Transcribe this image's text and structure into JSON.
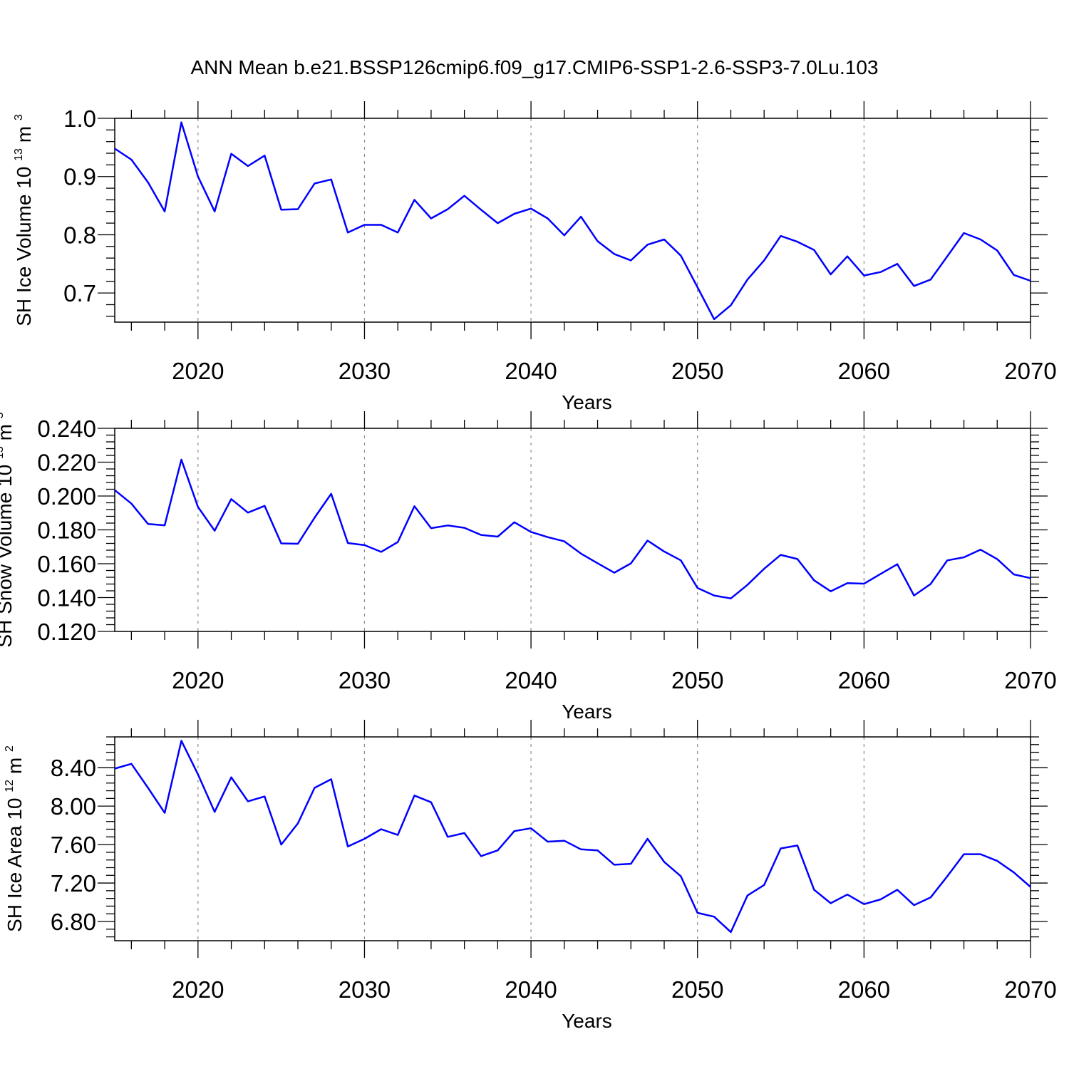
{
  "title": "ANN Mean b.e21.BSSP126cmip6.f09_g17.CMIP6-SSP1-2.6-SSP3-7.0Lu.103",
  "colors": {
    "line": "#0000ff",
    "axis": "#000000",
    "grid": "#8a8a8a"
  },
  "chart_data": [
    {
      "type": "line",
      "ylabel": "SH Ice Volume",
      "yunit_base": "10",
      "yunit_exp": "13",
      "yunit_suffix": "m",
      "yunit_suffix_exp": "3",
      "xlabel": "Years",
      "xlim": [
        2015,
        2070
      ],
      "ylim": [
        0.65,
        1.0
      ],
      "yticks": [
        0.7,
        0.8,
        0.9,
        1.0
      ],
      "ytick_labels": [
        "0.7",
        "0.8",
        "0.9",
        "1.0"
      ],
      "yminor_step": 0.02,
      "xticks": [
        2020,
        2030,
        2040,
        2050,
        2060,
        2070
      ],
      "xtick_labels": [
        "2020",
        "2030",
        "2040",
        "2050",
        "2060",
        "2070"
      ],
      "grid": "vertical dashed at major x ticks",
      "x": [
        2015,
        2016,
        2017,
        2018,
        2019,
        2020,
        2021,
        2022,
        2023,
        2024,
        2025,
        2026,
        2027,
        2028,
        2029,
        2030,
        2031,
        2032,
        2033,
        2034,
        2035,
        2036,
        2037,
        2038,
        2039,
        2040,
        2041,
        2042,
        2043,
        2044,
        2045,
        2046,
        2047,
        2048,
        2049,
        2050,
        2051,
        2052,
        2053,
        2054,
        2055,
        2056,
        2057,
        2058,
        2059,
        2060,
        2061,
        2062,
        2063,
        2064,
        2065,
        2066,
        2067,
        2068,
        2069,
        2070
      ],
      "series": [
        {
          "values": [
            0.948,
            0.929,
            0.89,
            0.84,
            0.993,
            0.9,
            0.84,
            0.939,
            0.918,
            0.936,
            0.843,
            0.844,
            0.888,
            0.895,
            0.804,
            0.817,
            0.817,
            0.804,
            0.86,
            0.828,
            0.844,
            0.867,
            0.843,
            0.82,
            0.836,
            0.845,
            0.828,
            0.799,
            0.831,
            0.789,
            0.767,
            0.756,
            0.783,
            0.792,
            0.764,
            0.71,
            0.655,
            0.679,
            0.723,
            0.756,
            0.798,
            0.788,
            0.774,
            0.732,
            0.763,
            0.73,
            0.736,
            0.75,
            0.712,
            0.723,
            0.763,
            0.803,
            0.792,
            0.773,
            0.731,
            0.721
          ]
        }
      ]
    },
    {
      "type": "line",
      "ylabel": "SH Snow Volume",
      "yunit_base": "10",
      "yunit_exp": "13",
      "yunit_suffix": "m",
      "yunit_suffix_exp": "3",
      "xlabel": "Years",
      "xlim": [
        2015,
        2070
      ],
      "ylim": [
        0.12,
        0.24
      ],
      "yticks": [
        0.12,
        0.14,
        0.16,
        0.18,
        0.2,
        0.22,
        0.24
      ],
      "ytick_labels": [
        "0.120",
        "0.140",
        "0.160",
        "0.180",
        "0.200",
        "0.220",
        "0.240"
      ],
      "yminor_step": 0.004,
      "xticks": [
        2020,
        2030,
        2040,
        2050,
        2060,
        2070
      ],
      "xtick_labels": [
        "2020",
        "2030",
        "2040",
        "2050",
        "2060",
        "2070"
      ],
      "grid": "vertical dashed at major x ticks",
      "x": [
        2015,
        2016,
        2017,
        2018,
        2019,
        2020,
        2021,
        2022,
        2023,
        2024,
        2025,
        2026,
        2027,
        2028,
        2029,
        2030,
        2031,
        2032,
        2033,
        2034,
        2035,
        2036,
        2037,
        2038,
        2039,
        2040,
        2041,
        2042,
        2043,
        2044,
        2045,
        2046,
        2047,
        2048,
        2049,
        2050,
        2051,
        2052,
        2053,
        2054,
        2055,
        2056,
        2057,
        2058,
        2059,
        2060,
        2061,
        2062,
        2063,
        2064,
        2065,
        2066,
        2067,
        2068,
        2069,
        2070
      ],
      "series": [
        {
          "values": [
            0.2035,
            0.1955,
            0.1835,
            0.1827,
            0.2215,
            0.1935,
            0.1795,
            0.1982,
            0.1902,
            0.1942,
            0.172,
            0.1718,
            0.1872,
            0.2013,
            0.1722,
            0.171,
            0.167,
            0.1728,
            0.194,
            0.181,
            0.1826,
            0.1812,
            0.177,
            0.176,
            0.1845,
            0.1788,
            0.1757,
            0.1732,
            0.166,
            0.1603,
            0.1547,
            0.1602,
            0.1737,
            0.1672,
            0.162,
            0.1457,
            0.1412,
            0.1395,
            0.1475,
            0.157,
            0.1652,
            0.1628,
            0.1502,
            0.1437,
            0.1485,
            0.1482,
            0.154,
            0.1597,
            0.1412,
            0.148,
            0.162,
            0.1638,
            0.1683,
            0.1627,
            0.1537,
            0.1515
          ]
        }
      ]
    },
    {
      "type": "line",
      "ylabel": "SH Ice Area",
      "yunit_base": "10",
      "yunit_exp": "12",
      "yunit_suffix": "m",
      "yunit_suffix_exp": "2",
      "xlabel": "Years",
      "xlim": [
        2015,
        2070
      ],
      "ylim": [
        6.6,
        8.72
      ],
      "yticks": [
        6.8,
        7.2,
        7.6,
        8.0,
        8.4
      ],
      "ytick_labels": [
        "6.80",
        "7.20",
        "7.60",
        "8.00",
        "8.40"
      ],
      "yminor_step": 0.08,
      "xticks": [
        2020,
        2030,
        2040,
        2050,
        2060,
        2070
      ],
      "xtick_labels": [
        "2020",
        "2030",
        "2040",
        "2050",
        "2060",
        "2070"
      ],
      "grid": "vertical dashed at major x ticks",
      "x": [
        2015,
        2016,
        2017,
        2018,
        2019,
        2020,
        2021,
        2022,
        2023,
        2024,
        2025,
        2026,
        2027,
        2028,
        2029,
        2030,
        2031,
        2032,
        2033,
        2034,
        2035,
        2036,
        2037,
        2038,
        2039,
        2040,
        2041,
        2042,
        2043,
        2044,
        2045,
        2046,
        2047,
        2048,
        2049,
        2050,
        2051,
        2052,
        2053,
        2054,
        2055,
        2056,
        2057,
        2058,
        2059,
        2060,
        2061,
        2062,
        2063,
        2064,
        2065,
        2066,
        2067,
        2068,
        2069,
        2070
      ],
      "series": [
        {
          "values": [
            8.39,
            8.44,
            8.19,
            7.93,
            8.68,
            8.33,
            7.94,
            8.3,
            8.05,
            8.1,
            7.6,
            7.82,
            8.19,
            8.28,
            7.58,
            7.66,
            7.76,
            7.7,
            8.11,
            8.04,
            7.68,
            7.72,
            7.48,
            7.54,
            7.74,
            7.77,
            7.63,
            7.64,
            7.55,
            7.54,
            7.39,
            7.4,
            7.66,
            7.42,
            7.27,
            6.89,
            6.85,
            6.69,
            7.07,
            7.18,
            7.56,
            7.59,
            7.13,
            6.99,
            7.08,
            6.98,
            7.03,
            7.13,
            6.97,
            7.05,
            7.27,
            7.5,
            7.5,
            7.43,
            7.31,
            7.16
          ]
        }
      ]
    }
  ]
}
